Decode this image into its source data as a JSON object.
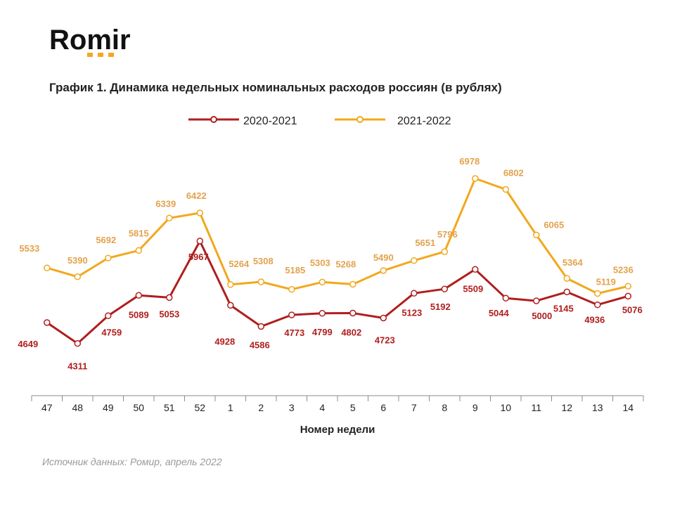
{
  "brand": {
    "name": "Romir",
    "accent_color": "#F5A623"
  },
  "chart_data": {
    "type": "line",
    "title": "График 1. Динамика недельных номинальных расходов россиян (в рублях)",
    "xlabel": "Номер недели",
    "ylabel": "",
    "categories": [
      "47",
      "48",
      "49",
      "50",
      "51",
      "52",
      "1",
      "2",
      "3",
      "4",
      "5",
      "6",
      "7",
      "8",
      "9",
      "10",
      "11",
      "12",
      "13",
      "14"
    ],
    "series": [
      {
        "name": "2020-2021",
        "color": "#B01E1E",
        "values": [
          4649,
          4311,
          4759,
          5089,
          5053,
          5967,
          4928,
          4586,
          4773,
          4799,
          4802,
          4723,
          5123,
          5192,
          5509,
          5044,
          5000,
          5145,
          4936,
          5076
        ]
      },
      {
        "name": "2021-2022",
        "color": "#F2A81D",
        "label_color": "#E3A24D",
        "values": [
          5533,
          5390,
          5692,
          5815,
          6339,
          6422,
          5264,
          5308,
          5185,
          5303,
          5268,
          5490,
          5651,
          5796,
          6978,
          6802,
          6065,
          5364,
          5119,
          5236
        ]
      }
    ],
    "legend_position": "top-center",
    "grid": false,
    "source": "Источник данных: Ромир, апрель 2022"
  }
}
